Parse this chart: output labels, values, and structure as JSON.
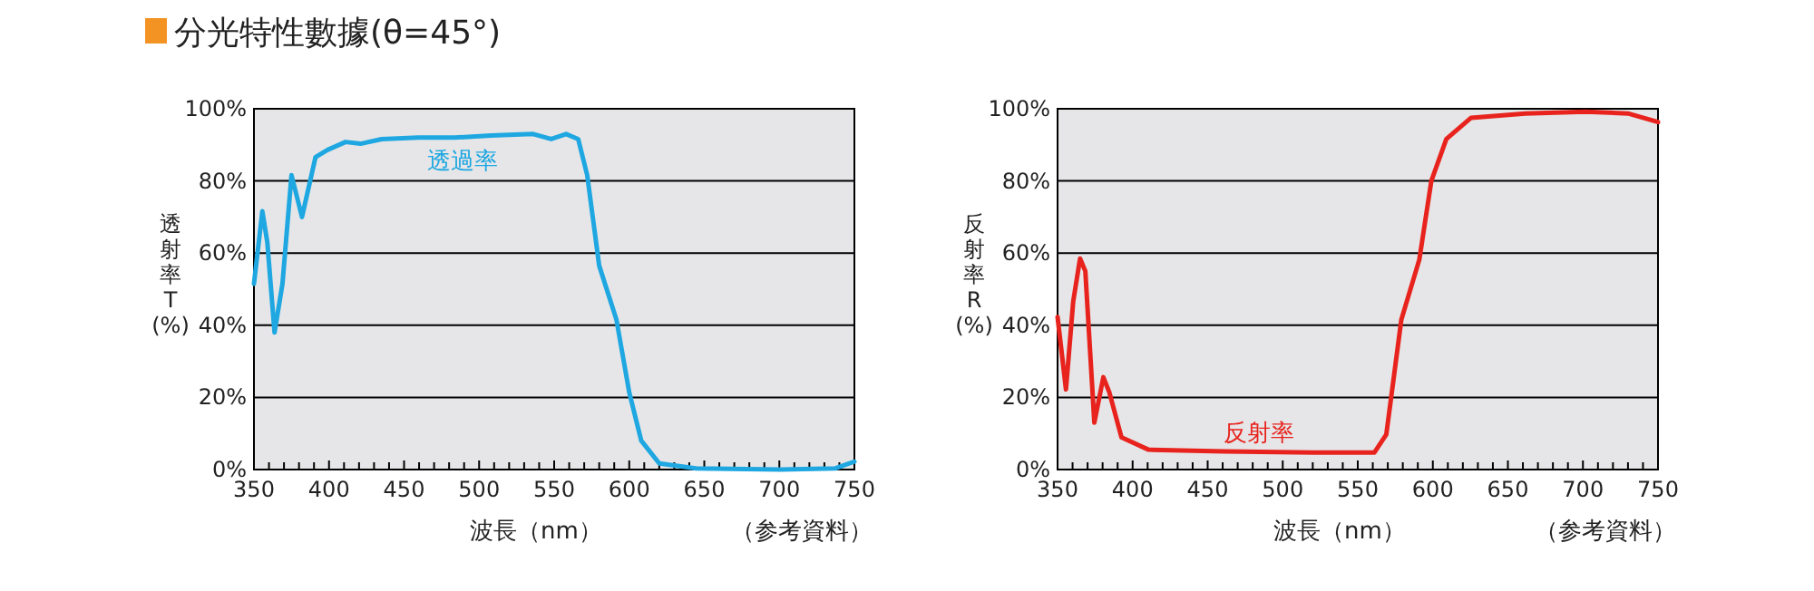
{
  "chart_data": [
    {
      "type": "line",
      "title": "分光特性數據(θ=45°)",
      "xlabel": "波長（nm）",
      "ylabel": "透射率T(%)",
      "annotations": [
        "（参考資料）"
      ],
      "grid": "y",
      "marker": "none",
      "line_style": "solid",
      "xlim": [
        350,
        750
      ],
      "ylim": [
        0,
        100
      ],
      "xticks": [
        350,
        {
          "value": 360,
          "label": null
        },
        {
          "value": 370,
          "label": null
        },
        {
          "value": 380,
          "label": null
        },
        {
          "value": 390,
          "label": null
        },
        400,
        {
          "value": 410,
          "label": null
        },
        {
          "value": 420,
          "label": null
        },
        {
          "value": 430,
          "label": null
        },
        {
          "value": 440,
          "label": null
        },
        450,
        {
          "value": 460,
          "label": null
        },
        {
          "value": 470,
          "label": null
        },
        {
          "value": 480,
          "label": null
        },
        {
          "value": 490,
          "label": null
        },
        500,
        {
          "value": 510,
          "label": null
        },
        {
          "value": 520,
          "label": null
        },
        {
          "value": 530,
          "label": null
        },
        {
          "value": 540,
          "label": null
        },
        550,
        {
          "value": 560,
          "label": null
        },
        {
          "value": 570,
          "label": null
        },
        {
          "value": 580,
          "label": null
        },
        {
          "value": 590,
          "label": null
        },
        600,
        {
          "value": 610,
          "label": null
        },
        {
          "value": 620,
          "label": null
        },
        {
          "value": 630,
          "label": null
        },
        {
          "value": 640,
          "label": null
        },
        650,
        {
          "value": 660,
          "label": null
        },
        {
          "value": 670,
          "label": null
        },
        {
          "value": 680,
          "label": null
        },
        {
          "value": 690,
          "label": null
        },
        700,
        {
          "value": 710,
          "label": null
        },
        {
          "value": 720,
          "label": null
        },
        {
          "value": 730,
          "label": null
        },
        {
          "value": 740,
          "label": null
        },
        750
      ],
      "yticks": [
        {
          "value": 0,
          "label": "0%"
        },
        {
          "value": 20,
          "label": "20%"
        },
        {
          "value": 40,
          "label": "40%"
        },
        {
          "value": 60,
          "label": "60%"
        },
        {
          "value": 80,
          "label": "80%"
        },
        {
          "value": 100,
          "label": "100%"
        }
      ],
      "series": [
        {
          "name": "透過率",
          "color": "#1ea7e1",
          "x": [
            350,
            355.6,
            358.9,
            363.7,
            369,
            375,
            382,
            391,
            399,
            411,
            421,
            435,
            459.5,
            483.6,
            508,
            536,
            548,
            558,
            566,
            572,
            580,
            591.5,
            600,
            608,
            620,
            644.6,
            701,
            737,
            750
          ],
          "values": [
            51.5,
            71.6,
            63,
            38,
            51.5,
            81.6,
            70,
            86.6,
            88.6,
            90.8,
            90.3,
            91.6,
            92,
            92,
            92.6,
            93,
            91.6,
            93,
            91.6,
            81.6,
            56.5,
            41.5,
            21.4,
            8,
            1.7,
            0.3,
            0,
            0.3,
            2.2
          ]
        }
      ]
    },
    {
      "type": "line",
      "xlabel": "波長（nm）",
      "ylabel": "反射率R(%)",
      "annotations": [
        "（参考資料）"
      ],
      "grid": "y",
      "marker": "none",
      "line_style": "solid",
      "xlim": [
        350,
        750
      ],
      "ylim": [
        0,
        100
      ],
      "xticks": [
        350,
        {
          "value": 360,
          "label": null
        },
        {
          "value": 370,
          "label": null
        },
        {
          "value": 380,
          "label": null
        },
        {
          "value": 390,
          "label": null
        },
        400,
        {
          "value": 410,
          "label": null
        },
        {
          "value": 420,
          "label": null
        },
        {
          "value": 430,
          "label": null
        },
        {
          "value": 440,
          "label": null
        },
        450,
        {
          "value": 460,
          "label": null
        },
        {
          "value": 470,
          "label": null
        },
        {
          "value": 480,
          "label": null
        },
        {
          "value": 490,
          "label": null
        },
        500,
        {
          "value": 510,
          "label": null
        },
        {
          "value": 520,
          "label": null
        },
        {
          "value": 530,
          "label": null
        },
        {
          "value": 540,
          "label": null
        },
        550,
        {
          "value": 560,
          "label": null
        },
        {
          "value": 570,
          "label": null
        },
        {
          "value": 580,
          "label": null
        },
        {
          "value": 590,
          "label": null
        },
        600,
        {
          "value": 610,
          "label": null
        },
        {
          "value": 620,
          "label": null
        },
        {
          "value": 630,
          "label": null
        },
        {
          "value": 640,
          "label": null
        },
        650,
        {
          "value": 660,
          "label": null
        },
        {
          "value": 670,
          "label": null
        },
        {
          "value": 680,
          "label": null
        },
        {
          "value": 690,
          "label": null
        },
        700,
        {
          "value": 710,
          "label": null
        },
        {
          "value": 720,
          "label": null
        },
        {
          "value": 730,
          "label": null
        },
        {
          "value": 740,
          "label": null
        },
        750
      ],
      "yticks": [
        {
          "value": 0,
          "label": "0%"
        },
        {
          "value": 20,
          "label": "20%"
        },
        {
          "value": 40,
          "label": "40%"
        },
        {
          "value": 60,
          "label": "60%"
        },
        {
          "value": 80,
          "label": "80%"
        },
        {
          "value": 100,
          "label": "100%"
        }
      ],
      "series": [
        {
          "name": "反射率",
          "color": "#e8231d",
          "x": [
            350,
            355.6,
            360.4,
            365,
            368.5,
            374.5,
            380.5,
            384.5,
            392.6,
            410.6,
            461,
            521,
            561,
            569,
            579,
            591,
            599,
            609,
            625.5,
            661.6,
            701.8,
            730,
            750
          ],
          "values": [
            42.3,
            22.2,
            46.5,
            58.5,
            55,
            13,
            25.6,
            21.4,
            8.9,
            5.5,
            5,
            4.7,
            4.7,
            9.7,
            41.5,
            58.2,
            80,
            91.6,
            97.5,
            98.7,
            99.2,
            98.7,
            96.3
          ]
        }
      ]
    }
  ]
}
